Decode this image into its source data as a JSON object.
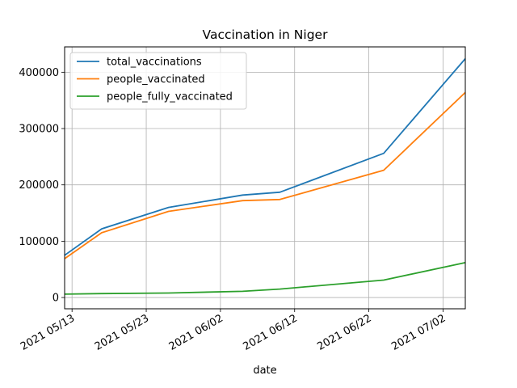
{
  "chart_data": {
    "type": "line",
    "title": "Vaccination in Niger",
    "xlabel": "date",
    "ylabel": "",
    "grid": true,
    "legend_position": "top-left",
    "x_ticks": [
      "2021-05-13",
      "2021-05-23",
      "2021-06-02",
      "2021-06-12",
      "2021-06-22",
      "2021-07-02"
    ],
    "x_tick_labels": [
      "2021 05/13",
      "2021 05/23",
      "2021 06/02",
      "2021 06/12",
      "2021 06/22",
      "2021 07/02"
    ],
    "xlim": [
      "2021-05-12",
      "2021-07-05"
    ],
    "y_ticks": [
      0,
      100000,
      200000,
      300000,
      400000
    ],
    "y_tick_labels": [
      "0",
      "100000",
      "200000",
      "300000",
      "400000"
    ],
    "ylim": [
      -20000,
      445000
    ],
    "series": [
      {
        "name": "total_vaccinations",
        "color": "#1f77b4",
        "x": [
          "2021-05-12",
          "2021-05-17",
          "2021-05-26",
          "2021-06-05",
          "2021-06-10",
          "2021-06-24",
          "2021-07-05"
        ],
        "values": [
          75000,
          122000,
          160000,
          182000,
          187000,
          256000,
          424000
        ]
      },
      {
        "name": "people_vaccinated",
        "color": "#ff7f0e",
        "x": [
          "2021-05-12",
          "2021-05-17",
          "2021-05-26",
          "2021-06-05",
          "2021-06-10",
          "2021-06-24",
          "2021-07-05"
        ],
        "values": [
          69000,
          115000,
          153000,
          172000,
          174000,
          226000,
          364000
        ]
      },
      {
        "name": "people_fully_vaccinated",
        "color": "#2ca02c",
        "x": [
          "2021-05-12",
          "2021-05-17",
          "2021-05-26",
          "2021-06-05",
          "2021-06-10",
          "2021-06-24",
          "2021-07-05"
        ],
        "values": [
          6000,
          7000,
          8000,
          11000,
          15000,
          31000,
          62000
        ]
      }
    ]
  }
}
